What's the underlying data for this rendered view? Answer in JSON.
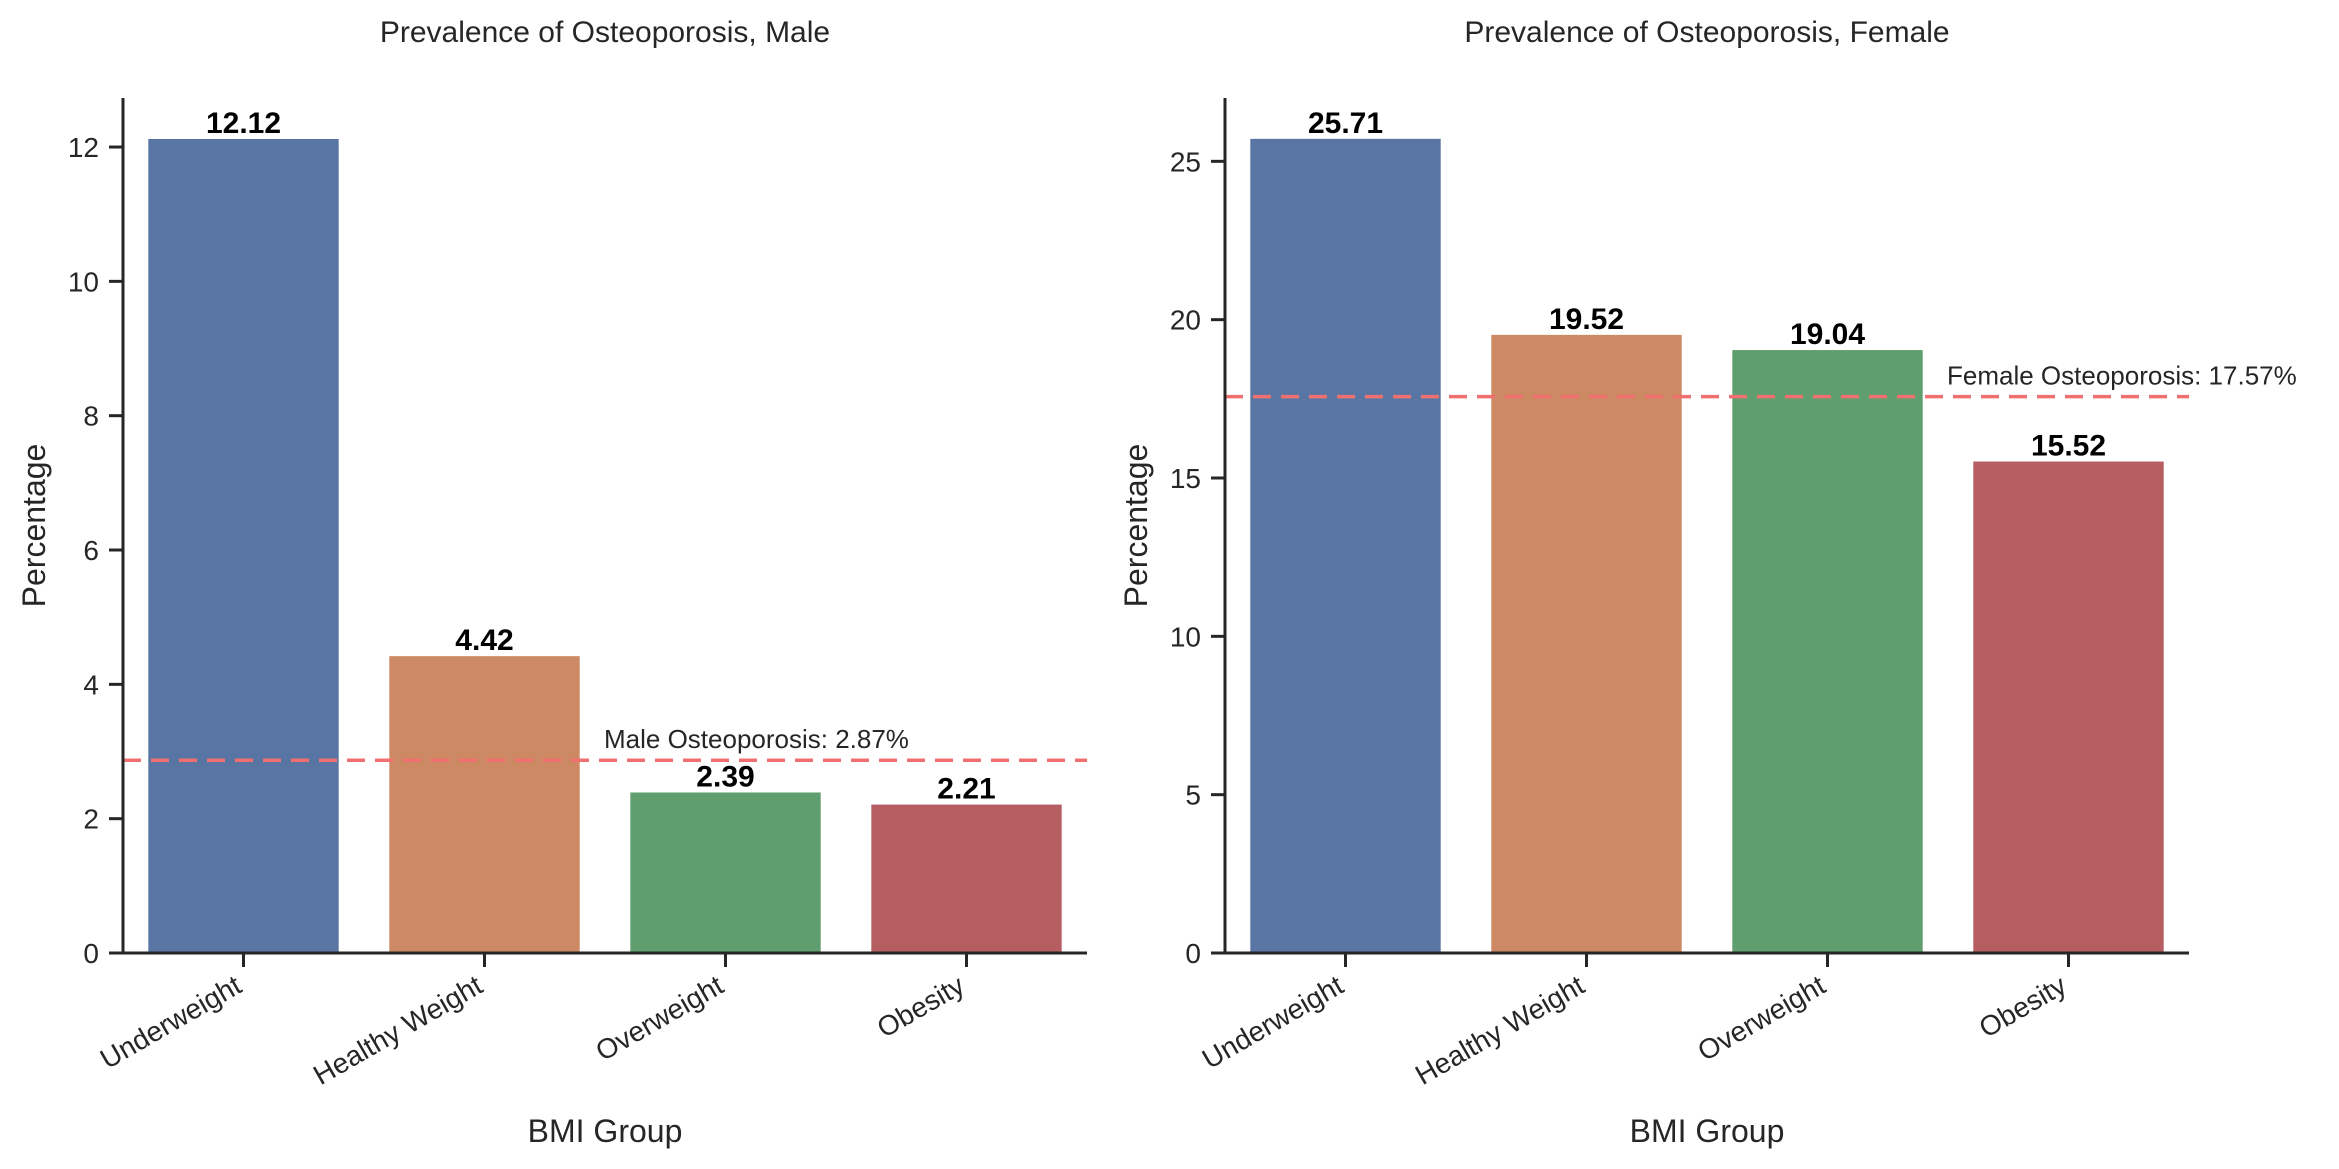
{
  "chart_data": [
    {
      "type": "bar",
      "title": "Prevalence of Osteoporosis, Male",
      "xlabel": "BMI Group",
      "ylabel": "Percentage",
      "categories": [
        "Underweight",
        "Healthy Weight",
        "Overweight",
        "Obesity"
      ],
      "values": [
        12.12,
        4.42,
        2.39,
        2.21
      ],
      "value_labels": [
        "12.12",
        "4.42",
        "2.39",
        "2.21"
      ],
      "colors": [
        "#5975a4",
        "#cc8963",
        "#5f9e6e",
        "#b55d60"
      ],
      "ylim": [
        0,
        12.73
      ],
      "yticks": [
        0,
        2,
        4,
        6,
        8,
        10,
        12
      ],
      "ytick_labels": [
        "0",
        "2",
        "4",
        "6",
        "8",
        "10",
        "12"
      ],
      "reference_line": {
        "value": 2.87,
        "label": "Male Osteoporosis: 2.87%",
        "color": "#f07070"
      },
      "grid": false
    },
    {
      "type": "bar",
      "title": "Prevalence of Osteoporosis, Female",
      "xlabel": "BMI Group",
      "ylabel": "Percentage",
      "categories": [
        "Underweight",
        "Healthy Weight",
        "Overweight",
        "Obesity"
      ],
      "values": [
        25.71,
        19.52,
        19.04,
        15.52
      ],
      "value_labels": [
        "25.71",
        "19.52",
        "19.04",
        "15.52"
      ],
      "colors": [
        "#5975a4",
        "#cc8963",
        "#5f9e6e",
        "#b55d60"
      ],
      "ylim": [
        0,
        27.0
      ],
      "yticks": [
        0,
        5,
        10,
        15,
        20,
        25
      ],
      "ytick_labels": [
        "0",
        "5",
        "10",
        "15",
        "20",
        "25"
      ],
      "reference_line": {
        "value": 17.57,
        "label": "Female Osteoporosis: 17.57%",
        "color": "#f07070"
      },
      "grid": false
    }
  ]
}
